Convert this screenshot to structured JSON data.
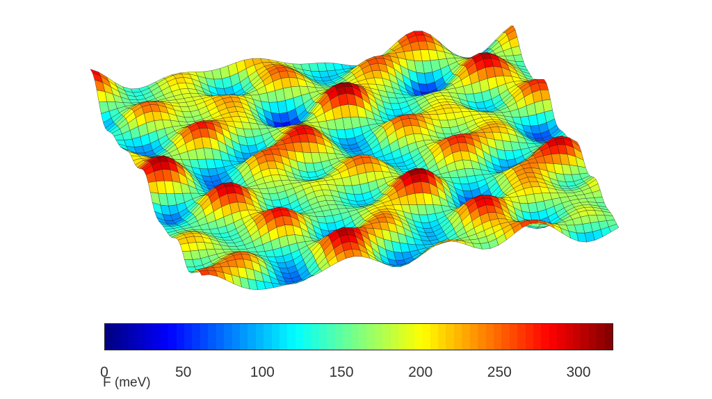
{
  "chart_data": {
    "type": "surface",
    "title": "",
    "colorbar": {
      "label": "F (meV)",
      "range": [
        0,
        322
      ],
      "ticks": [
        0,
        50,
        100,
        150,
        200,
        250,
        300
      ],
      "colormap": "jet"
    },
    "grid": false,
    "legend": "none"
  }
}
